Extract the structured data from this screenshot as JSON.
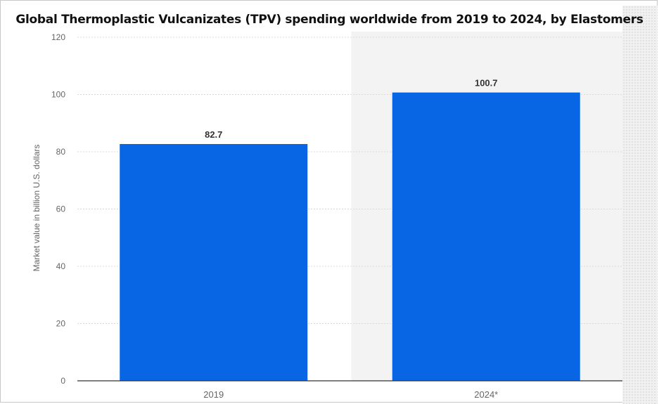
{
  "chart_data": {
    "type": "bar",
    "title": "Global Thermoplastic Vulcanizates (TPV) spending worldwide from 2019 to 2024, by Elastomers",
    "xlabel": "",
    "ylabel": "Market value in billion U.S. dollars",
    "categories": [
      "2019",
      "2024*"
    ],
    "values": [
      82.7,
      100.7
    ],
    "value_labels": [
      "82.7",
      "100.7"
    ],
    "ylim": [
      0,
      120
    ],
    "yticks": [
      0,
      20,
      40,
      60,
      80,
      100,
      120
    ],
    "grid": true,
    "highlight_category": "2024*",
    "colors": {
      "bar": "#0866e5",
      "grid": "#d9d9d9",
      "highlight_bg": "#f3f3f3",
      "axis": "#333333",
      "tick_text": "#666666"
    }
  }
}
